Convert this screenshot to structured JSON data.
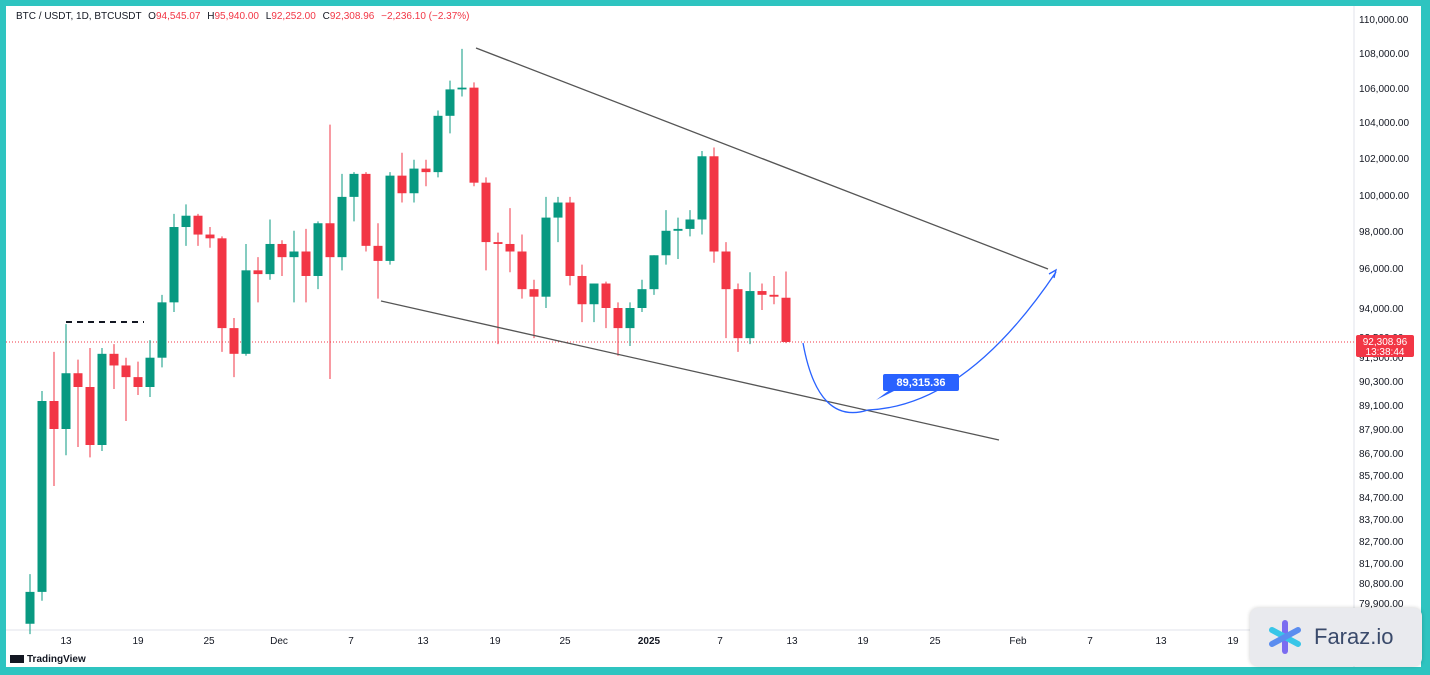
{
  "header": {
    "symbol": "BTC / USDT, 1D, BTCUSDT",
    "o_label": "O",
    "o_value": "94,545.07",
    "h_label": "H",
    "h_value": "95,940.00",
    "l_label": "L",
    "l_value": "92,252.00",
    "c_label": "C",
    "c_value": "92,308.96",
    "change": "−2,236.10 (−2.37%)"
  },
  "price_tag": {
    "price": "92,308.96",
    "countdown": "13:38:44",
    "color": "#f23645"
  },
  "annotation": {
    "text": "89,315.36",
    "color": "#2962ff"
  },
  "branding": {
    "tradingview": "TradingView",
    "faraz": "Faraz.io"
  },
  "colors": {
    "up": "#089981",
    "down": "#f23645",
    "line": "#555555",
    "projection": "#2962ff",
    "background": "#2ec4c0"
  },
  "chart_data": {
    "type": "candlestick",
    "title": "BTC / USDT, 1D, BTCUSDT",
    "y_ticks": [
      "110,000.00",
      "108,000.00",
      "106,000.00",
      "104,000.00",
      "102,000.00",
      "100,000.00",
      "98,000.00",
      "96,000.00",
      "94,000.00",
      "92,500.00",
      "91,500.00",
      "90,300.00",
      "89,100.00",
      "87,900.00",
      "86,700.00",
      "85,700.00",
      "84,700.00",
      "83,700.00",
      "82,700.00",
      "81,700.00",
      "80,800.00",
      "79,900.00"
    ],
    "x_ticks": [
      {
        "label": "13",
        "bold": false
      },
      {
        "label": "19",
        "bold": false
      },
      {
        "label": "25",
        "bold": false
      },
      {
        "label": "Dec",
        "bold": false
      },
      {
        "label": "7",
        "bold": false
      },
      {
        "label": "13",
        "bold": false
      },
      {
        "label": "19",
        "bold": false
      },
      {
        "label": "25",
        "bold": false
      },
      {
        "label": "2025",
        "bold": true
      },
      {
        "label": "7",
        "bold": false
      },
      {
        "label": "13",
        "bold": false
      },
      {
        "label": "19",
        "bold": false
      },
      {
        "label": "25",
        "bold": false
      },
      {
        "label": "Feb",
        "bold": false
      },
      {
        "label": "7",
        "bold": false
      },
      {
        "label": "13",
        "bold": false
      },
      {
        "label": "19",
        "bold": false
      }
    ],
    "candles": [
      {
        "o": 78500,
        "h": 81200,
        "l": 77800,
        "c": 80400
      },
      {
        "o": 80400,
        "h": 89800,
        "l": 80000,
        "c": 89300
      },
      {
        "o": 89300,
        "h": 91800,
        "l": 85200,
        "c": 87900
      },
      {
        "o": 87900,
        "h": 93200,
        "l": 86600,
        "c": 90700
      },
      {
        "o": 90700,
        "h": 91400,
        "l": 87000,
        "c": 90000
      },
      {
        "o": 90000,
        "h": 92000,
        "l": 86500,
        "c": 87100
      },
      {
        "o": 87100,
        "h": 92000,
        "l": 86800,
        "c": 91700
      },
      {
        "o": 91700,
        "h": 92200,
        "l": 89900,
        "c": 91100
      },
      {
        "o": 91100,
        "h": 91500,
        "l": 88300,
        "c": 90500
      },
      {
        "o": 90500,
        "h": 91300,
        "l": 89600,
        "c": 90000
      },
      {
        "o": 90000,
        "h": 92400,
        "l": 89500,
        "c": 91500
      },
      {
        "o": 91500,
        "h": 94700,
        "l": 91000,
        "c": 94300
      },
      {
        "o": 94300,
        "h": 99000,
        "l": 93800,
        "c": 98300
      },
      {
        "o": 98300,
        "h": 99500,
        "l": 97300,
        "c": 98900
      },
      {
        "o": 98900,
        "h": 99000,
        "l": 97300,
        "c": 97900
      },
      {
        "o": 97900,
        "h": 98300,
        "l": 97200,
        "c": 97700
      },
      {
        "o": 97700,
        "h": 97800,
        "l": 91800,
        "c": 93000
      },
      {
        "o": 93000,
        "h": 93500,
        "l": 90500,
        "c": 91700
      },
      {
        "o": 91700,
        "h": 97400,
        "l": 91600,
        "c": 96000
      },
      {
        "o": 96000,
        "h": 96700,
        "l": 94300,
        "c": 95800
      },
      {
        "o": 95800,
        "h": 98700,
        "l": 95500,
        "c": 97400
      },
      {
        "o": 97400,
        "h": 97600,
        "l": 95700,
        "c": 96700
      },
      {
        "o": 96700,
        "h": 98100,
        "l": 94300,
        "c": 97000
      },
      {
        "o": 97000,
        "h": 98200,
        "l": 94300,
        "c": 95700
      },
      {
        "o": 95700,
        "h": 98600,
        "l": 95000,
        "c": 98500
      },
      {
        "o": 98500,
        "h": 104000,
        "l": 90400,
        "c": 96700
      },
      {
        "o": 96700,
        "h": 101200,
        "l": 96000,
        "c": 99900
      },
      {
        "o": 99900,
        "h": 101300,
        "l": 98600,
        "c": 101200
      },
      {
        "o": 101200,
        "h": 101300,
        "l": 97000,
        "c": 97300
      },
      {
        "o": 97300,
        "h": 98500,
        "l": 94500,
        "c": 96500
      },
      {
        "o": 96500,
        "h": 101300,
        "l": 96300,
        "c": 101100
      },
      {
        "o": 101100,
        "h": 102400,
        "l": 99600,
        "c": 100100
      },
      {
        "o": 100100,
        "h": 102000,
        "l": 99600,
        "c": 101500
      },
      {
        "o": 101500,
        "h": 102000,
        "l": 100500,
        "c": 101300
      },
      {
        "o": 101300,
        "h": 104800,
        "l": 101000,
        "c": 104500
      },
      {
        "o": 104500,
        "h": 106500,
        "l": 103500,
        "c": 106000
      },
      {
        "o": 106000,
        "h": 108300,
        "l": 105600,
        "c": 106100
      },
      {
        "o": 106100,
        "h": 106400,
        "l": 100500,
        "c": 100700
      },
      {
        "o": 100700,
        "h": 101000,
        "l": 96000,
        "c": 97500
      },
      {
        "o": 97500,
        "h": 98000,
        "l": 92200,
        "c": 97400
      },
      {
        "o": 97400,
        "h": 99300,
        "l": 95900,
        "c": 97000
      },
      {
        "o": 97000,
        "h": 97900,
        "l": 94500,
        "c": 95000
      },
      {
        "o": 95000,
        "h": 95500,
        "l": 92500,
        "c": 94600
      },
      {
        "o": 94600,
        "h": 99900,
        "l": 94000,
        "c": 98800
      },
      {
        "o": 98800,
        "h": 99900,
        "l": 97500,
        "c": 99600
      },
      {
        "o": 99600,
        "h": 99900,
        "l": 95200,
        "c": 95700
      },
      {
        "o": 95700,
        "h": 96300,
        "l": 93300,
        "c": 94200
      },
      {
        "o": 94200,
        "h": 95300,
        "l": 93300,
        "c": 95300
      },
      {
        "o": 95300,
        "h": 95400,
        "l": 93000,
        "c": 94000
      },
      {
        "o": 94000,
        "h": 94300,
        "l": 91600,
        "c": 93000
      },
      {
        "o": 93000,
        "h": 94300,
        "l": 92100,
        "c": 94000
      },
      {
        "o": 94000,
        "h": 95500,
        "l": 93800,
        "c": 95000
      },
      {
        "o": 95000,
        "h": 96800,
        "l": 94700,
        "c": 96800
      },
      {
        "o": 96800,
        "h": 99200,
        "l": 96300,
        "c": 98100
      },
      {
        "o": 98100,
        "h": 98800,
        "l": 96600,
        "c": 98200
      },
      {
        "o": 98200,
        "h": 99200,
        "l": 97800,
        "c": 98700
      },
      {
        "o": 98700,
        "h": 102500,
        "l": 97900,
        "c": 102200
      },
      {
        "o": 102200,
        "h": 102700,
        "l": 96400,
        "c": 97000
      },
      {
        "o": 97000,
        "h": 97500,
        "l": 92500,
        "c": 95000
      },
      {
        "o": 95000,
        "h": 95300,
        "l": 91800,
        "c": 92500
      },
      {
        "o": 92500,
        "h": 95900,
        "l": 92200,
        "c": 94900
      },
      {
        "o": 94900,
        "h": 95300,
        "l": 93900,
        "c": 94700
      },
      {
        "o": 94700,
        "h": 95700,
        "l": 94200,
        "c": 94600
      },
      {
        "o": 94545.07,
        "h": 95940,
        "l": 92252,
        "c": 92308.96
      }
    ],
    "projection_target": 89315.36
  }
}
